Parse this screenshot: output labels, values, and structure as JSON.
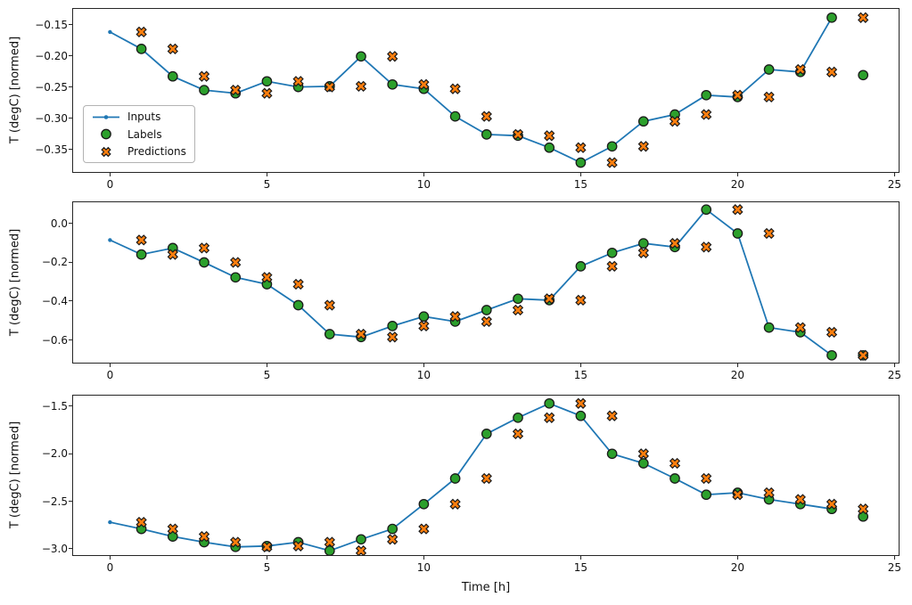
{
  "xlabel": "Time [h]",
  "colors": {
    "inputs": "#1f77b4",
    "labels": "#2ca02c",
    "predictions": "#ff7f0e",
    "marker_edge": "#1a1a1a",
    "spine": "#262626"
  },
  "legend": {
    "entries": [
      "Inputs",
      "Labels",
      "Predictions"
    ],
    "position": "upper-left-subplot-1"
  },
  "chart_data": [
    {
      "type": "line",
      "title": "",
      "xlabel": "",
      "ylabel": "T (degC) [normed]",
      "xlim": [
        -1.2,
        25.2
      ],
      "ylim": [
        -0.386,
        -0.125
      ],
      "grid": false,
      "has_legend": true,
      "xticks": {
        "values": [
          0,
          5,
          10,
          15,
          20,
          25
        ],
        "labels": [
          "0",
          "5",
          "10",
          "15",
          "20",
          "25"
        ]
      },
      "yticks": {
        "values": [
          -0.15,
          -0.2,
          -0.25,
          -0.3,
          -0.35
        ],
        "labels": [
          "−0.15",
          "−0.20",
          "−0.25",
          "−0.30",
          "−0.35"
        ]
      },
      "series": [
        {
          "name": "Inputs",
          "type": "line",
          "marker": "point",
          "color": "#1f77b4",
          "x": [
            0,
            1,
            2,
            3,
            4,
            5,
            6,
            7,
            8,
            9,
            10,
            11,
            12,
            13,
            14,
            15,
            16,
            17,
            18,
            19,
            20,
            21,
            22,
            23
          ],
          "y": [
            -0.162,
            -0.189,
            -0.233,
            -0.255,
            -0.26,
            -0.241,
            -0.25,
            -0.249,
            -0.201,
            -0.246,
            -0.253,
            -0.297,
            -0.326,
            -0.328,
            -0.347,
            -0.371,
            -0.345,
            -0.305,
            -0.294,
            -0.263,
            -0.266,
            -0.222,
            -0.226,
            -0.139
          ]
        },
        {
          "name": "Labels",
          "type": "scatter",
          "marker": "circle",
          "color": "#2ca02c",
          "edge_color": "#1a1a1a",
          "x": [
            1,
            2,
            3,
            4,
            5,
            6,
            7,
            8,
            9,
            10,
            11,
            12,
            13,
            14,
            15,
            16,
            17,
            18,
            19,
            20,
            21,
            22,
            23,
            24
          ],
          "y": [
            -0.189,
            -0.233,
            -0.255,
            -0.26,
            -0.241,
            -0.25,
            -0.249,
            -0.201,
            -0.246,
            -0.253,
            -0.297,
            -0.326,
            -0.328,
            -0.347,
            -0.371,
            -0.345,
            -0.305,
            -0.294,
            -0.263,
            -0.266,
            -0.222,
            -0.226,
            -0.139,
            -0.231
          ]
        },
        {
          "name": "Predictions",
          "type": "scatter",
          "marker": "X",
          "color": "#ff7f0e",
          "edge_color": "#1a1a1a",
          "x": [
            1,
            2,
            3,
            4,
            5,
            6,
            7,
            8,
            9,
            10,
            11,
            12,
            13,
            14,
            15,
            16,
            17,
            18,
            19,
            20,
            21,
            22,
            23,
            24
          ],
          "y": [
            -0.162,
            -0.189,
            -0.233,
            -0.255,
            -0.26,
            -0.241,
            -0.25,
            -0.249,
            -0.201,
            -0.246,
            -0.253,
            -0.297,
            -0.326,
            -0.328,
            -0.347,
            -0.371,
            -0.345,
            -0.305,
            -0.294,
            -0.263,
            -0.266,
            -0.222,
            -0.226,
            -0.139
          ]
        }
      ]
    },
    {
      "type": "line",
      "title": "",
      "xlabel": "",
      "ylabel": "T (degC) [normed]",
      "xlim": [
        -1.2,
        25.2
      ],
      "ylim": [
        -0.7165,
        0.1085
      ],
      "grid": false,
      "has_legend": false,
      "xticks": {
        "values": [
          0,
          5,
          10,
          15,
          20,
          25
        ],
        "labels": [
          "0",
          "5",
          "10",
          "15",
          "20",
          "25"
        ]
      },
      "yticks": {
        "values": [
          0.0,
          -0.2,
          -0.4,
          -0.6
        ],
        "labels": [
          "0.0",
          "−0.2",
          "−0.4",
          "−0.6"
        ]
      },
      "series": [
        {
          "name": "Inputs",
          "type": "line",
          "marker": "point",
          "color": "#1f77b4",
          "x": [
            0,
            1,
            2,
            3,
            4,
            5,
            6,
            7,
            8,
            9,
            10,
            11,
            12,
            13,
            14,
            15,
            16,
            17,
            18,
            19,
            20,
            21,
            22,
            23
          ],
          "y": [
            -0.086,
            -0.16,
            -0.127,
            -0.201,
            -0.278,
            -0.313,
            -0.421,
            -0.57,
            -0.585,
            -0.528,
            -0.479,
            -0.505,
            -0.446,
            -0.388,
            -0.395,
            -0.221,
            -0.152,
            -0.103,
            -0.122,
            0.071,
            -0.052,
            -0.536,
            -0.56,
            -0.679
          ]
        },
        {
          "name": "Labels",
          "type": "scatter",
          "marker": "circle",
          "color": "#2ca02c",
          "edge_color": "#1a1a1a",
          "x": [
            1,
            2,
            3,
            4,
            5,
            6,
            7,
            8,
            9,
            10,
            11,
            12,
            13,
            14,
            15,
            16,
            17,
            18,
            19,
            20,
            21,
            22,
            23,
            24
          ],
          "y": [
            -0.16,
            -0.127,
            -0.201,
            -0.278,
            -0.313,
            -0.421,
            -0.57,
            -0.585,
            -0.528,
            -0.479,
            -0.505,
            -0.446,
            -0.388,
            -0.395,
            -0.221,
            -0.152,
            -0.103,
            -0.122,
            0.071,
            -0.052,
            -0.536,
            -0.56,
            -0.679,
            -0.679
          ]
        },
        {
          "name": "Predictions",
          "type": "scatter",
          "marker": "X",
          "color": "#ff7f0e",
          "edge_color": "#1a1a1a",
          "x": [
            1,
            2,
            3,
            4,
            5,
            6,
            7,
            8,
            9,
            10,
            11,
            12,
            13,
            14,
            15,
            16,
            17,
            18,
            19,
            20,
            21,
            22,
            23,
            24
          ],
          "y": [
            -0.086,
            -0.16,
            -0.127,
            -0.201,
            -0.278,
            -0.313,
            -0.421,
            -0.57,
            -0.585,
            -0.528,
            -0.479,
            -0.505,
            -0.446,
            -0.388,
            -0.395,
            -0.221,
            -0.152,
            -0.103,
            -0.122,
            0.071,
            -0.052,
            -0.536,
            -0.56,
            -0.679
          ]
        }
      ]
    },
    {
      "type": "line",
      "title": "",
      "xlabel": "Time [h]",
      "ylabel": "T (degC) [normed]",
      "xlim": [
        -1.2,
        25.2
      ],
      "ylim": [
        -3.066,
        -1.3875
      ],
      "grid": false,
      "has_legend": false,
      "xticks": {
        "values": [
          0,
          5,
          10,
          15,
          20,
          25
        ],
        "labels": [
          "0",
          "5",
          "10",
          "15",
          "20",
          "25"
        ]
      },
      "yticks": {
        "values": [
          -1.5,
          -2.0,
          -2.5,
          -3.0
        ],
        "labels": [
          "−1.5",
          "−2.0",
          "−2.5",
          "−3.0"
        ]
      },
      "series": [
        {
          "name": "Inputs",
          "type": "line",
          "marker": "point",
          "color": "#1f77b4",
          "x": [
            0,
            1,
            2,
            3,
            4,
            5,
            6,
            7,
            8,
            9,
            10,
            11,
            12,
            13,
            14,
            15,
            16,
            17,
            18,
            19,
            20,
            21,
            22,
            23
          ],
          "y": [
            -2.72,
            -2.79,
            -2.87,
            -2.93,
            -2.98,
            -2.97,
            -2.93,
            -3.02,
            -2.9,
            -2.79,
            -2.53,
            -2.26,
            -1.79,
            -1.62,
            -1.47,
            -1.6,
            -2.0,
            -2.1,
            -2.26,
            -2.43,
            -2.41,
            -2.48,
            -2.53,
            -2.58
          ]
        },
        {
          "name": "Labels",
          "type": "scatter",
          "marker": "circle",
          "color": "#2ca02c",
          "edge_color": "#1a1a1a",
          "x": [
            1,
            2,
            3,
            4,
            5,
            6,
            7,
            8,
            9,
            10,
            11,
            12,
            13,
            14,
            15,
            16,
            17,
            18,
            19,
            20,
            21,
            22,
            23,
            24
          ],
          "y": [
            -2.79,
            -2.87,
            -2.93,
            -2.98,
            -2.97,
            -2.93,
            -3.02,
            -2.9,
            -2.79,
            -2.53,
            -2.26,
            -1.79,
            -1.62,
            -1.47,
            -1.6,
            -2.0,
            -2.1,
            -2.26,
            -2.43,
            -2.41,
            -2.48,
            -2.53,
            -2.58,
            -2.66
          ]
        },
        {
          "name": "Predictions",
          "type": "scatter",
          "marker": "X",
          "color": "#ff7f0e",
          "edge_color": "#1a1a1a",
          "x": [
            1,
            2,
            3,
            4,
            5,
            6,
            7,
            8,
            9,
            10,
            11,
            12,
            13,
            14,
            15,
            16,
            17,
            18,
            19,
            20,
            21,
            22,
            23,
            24
          ],
          "y": [
            -2.72,
            -2.79,
            -2.87,
            -2.93,
            -2.98,
            -2.97,
            -2.93,
            -3.02,
            -2.9,
            -2.79,
            -2.53,
            -2.26,
            -1.79,
            -1.62,
            -1.47,
            -1.6,
            -2.0,
            -2.1,
            -2.26,
            -2.43,
            -2.41,
            -2.48,
            -2.53,
            -2.58
          ]
        }
      ]
    }
  ]
}
